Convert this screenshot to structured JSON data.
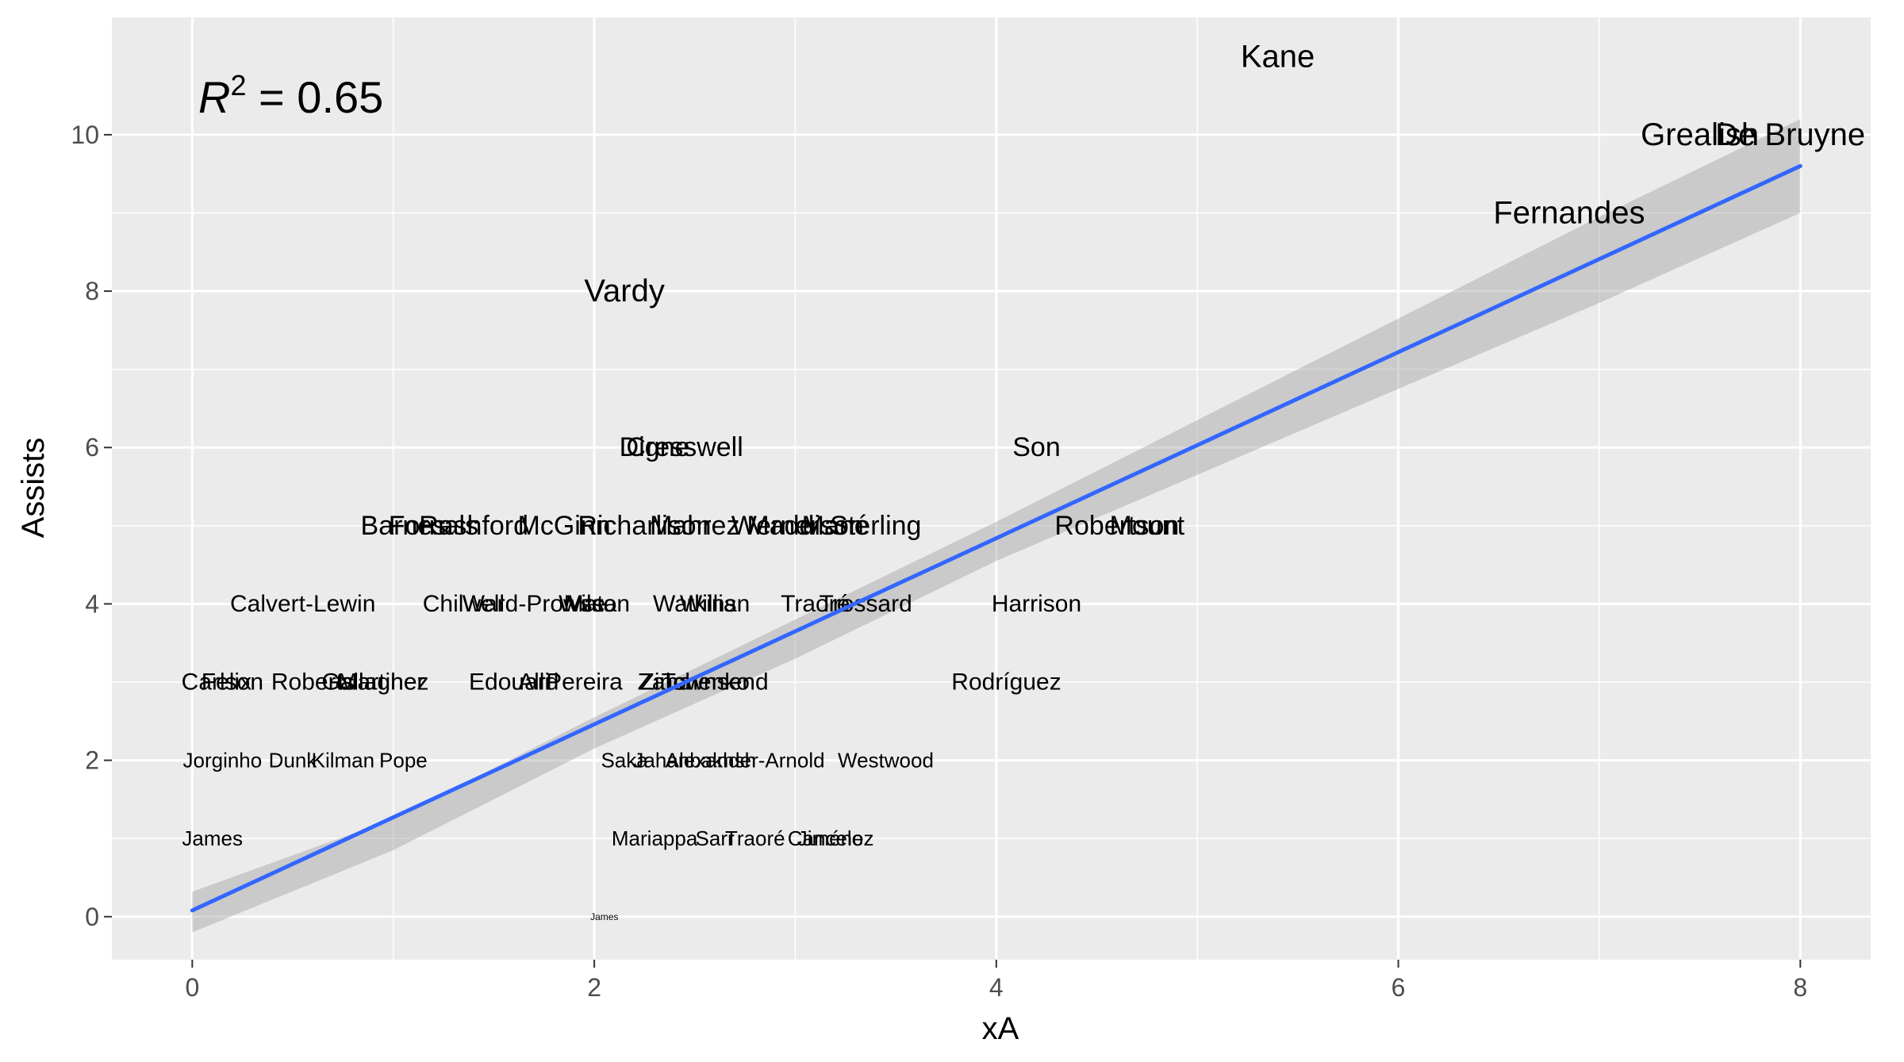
{
  "chart_data": {
    "type": "scatter",
    "title": "",
    "xlabel": "xA",
    "ylabel": "Assists",
    "xlim": [
      -0.4,
      8.35
    ],
    "ylim": [
      -0.55,
      11.5
    ],
    "x_ticks": [
      0,
      2,
      4,
      6,
      8
    ],
    "y_ticks": [
      0,
      2,
      4,
      6,
      8,
      10
    ],
    "grid": true,
    "annotation": {
      "r": "R",
      "sup": "2",
      "rest": " = 0.65",
      "x": 0.05,
      "y": 10.5
    },
    "fit": {
      "method": "lm",
      "points": [
        [
          0,
          0.08
        ],
        [
          8,
          9.6
        ]
      ],
      "band": [
        [
          0,
          -0.2,
          0.32
        ],
        [
          1,
          0.85,
          1.25
        ],
        [
          2,
          2.15,
          2.55
        ],
        [
          3,
          3.3,
          3.8
        ],
        [
          4,
          4.55,
          5.05
        ],
        [
          5,
          5.65,
          6.35
        ],
        [
          6,
          6.75,
          7.65
        ],
        [
          7,
          7.85,
          8.95
        ],
        [
          8,
          9.0,
          10.2
        ]
      ]
    },
    "points": [
      {
        "label": "Kane",
        "x": 5.4,
        "y": 11
      },
      {
        "label": "Grealish",
        "x": 7.5,
        "y": 10
      },
      {
        "label": "De Bruyne",
        "x": 7.95,
        "y": 10
      },
      {
        "label": "Fernandes",
        "x": 6.85,
        "y": 9
      },
      {
        "label": "Vardy",
        "x": 2.15,
        "y": 8
      },
      {
        "label": "Digne",
        "x": 2.3,
        "y": 6
      },
      {
        "label": "Cresswell",
        "x": 2.45,
        "y": 6
      },
      {
        "label": "Son",
        "x": 4.2,
        "y": 6
      },
      {
        "label": "Barnes",
        "x": 1.05,
        "y": 5
      },
      {
        "label": "Fornals",
        "x": 1.2,
        "y": 5
      },
      {
        "label": "Rashford",
        "x": 1.4,
        "y": 5
      },
      {
        "label": "McGinn",
        "x": 1.85,
        "y": 5
      },
      {
        "label": "Richarlison",
        "x": 2.25,
        "y": 5
      },
      {
        "label": "Mahrez",
        "x": 2.5,
        "y": 5
      },
      {
        "label": "Werner",
        "x": 2.9,
        "y": 5
      },
      {
        "label": "Maddison",
        "x": 3.05,
        "y": 5
      },
      {
        "label": "Mané",
        "x": 3.2,
        "y": 5
      },
      {
        "label": "Sterling",
        "x": 3.4,
        "y": 5
      },
      {
        "label": "Robertson",
        "x": 4.6,
        "y": 5
      },
      {
        "label": "Mount",
        "x": 4.75,
        "y": 5
      },
      {
        "label": "Calvert-Lewin",
        "x": 0.55,
        "y": 4
      },
      {
        "label": "Chilwell",
        "x": 1.35,
        "y": 4
      },
      {
        "label": "Ward-Prowse",
        "x": 1.7,
        "y": 4
      },
      {
        "label": "Wilson",
        "x": 2.0,
        "y": 4
      },
      {
        "label": "Mata",
        "x": 1.98,
        "y": 4
      },
      {
        "label": "Willian",
        "x": 2.6,
        "y": 4
      },
      {
        "label": "Watkins",
        "x": 2.5,
        "y": 4
      },
      {
        "label": "Traoré",
        "x": 3.1,
        "y": 4
      },
      {
        "label": "Trossard",
        "x": 3.35,
        "y": 4
      },
      {
        "label": "Harrison",
        "x": 4.2,
        "y": 4
      },
      {
        "label": "Carlson",
        "x": 0.15,
        "y": 3
      },
      {
        "label": "Felix",
        "x": 0.17,
        "y": 3
      },
      {
        "label": "Roberts",
        "x": 0.6,
        "y": 3
      },
      {
        "label": "Gallagher",
        "x": 0.9,
        "y": 3
      },
      {
        "label": "Martinez",
        "x": 0.95,
        "y": 3
      },
      {
        "label": "Edouard",
        "x": 1.6,
        "y": 3
      },
      {
        "label": "Alli",
        "x": 1.7,
        "y": 3
      },
      {
        "label": "Pereira",
        "x": 1.95,
        "y": 3
      },
      {
        "label": "Zaha",
        "x": 2.35,
        "y": 3
      },
      {
        "label": "Zinchenko",
        "x": 2.5,
        "y": 3
      },
      {
        "label": "Townsend",
        "x": 2.6,
        "y": 3
      },
      {
        "label": "Rodríguez",
        "x": 4.05,
        "y": 3
      },
      {
        "label": "Jorginho",
        "x": 0.15,
        "y": 2
      },
      {
        "label": "Dunk",
        "x": 0.5,
        "y": 2
      },
      {
        "label": "Kilman",
        "x": 0.75,
        "y": 2
      },
      {
        "label": "Pope",
        "x": 1.05,
        "y": 2
      },
      {
        "label": "Saka",
        "x": 2.15,
        "y": 2
      },
      {
        "label": "Jahanbakhsh",
        "x": 2.5,
        "y": 2
      },
      {
        "label": "Alexander-Arnold",
        "x": 2.75,
        "y": 2
      },
      {
        "label": "Westwood",
        "x": 3.45,
        "y": 2
      },
      {
        "label": "James",
        "x": 0.1,
        "y": 1
      },
      {
        "label": "Mariappa",
        "x": 2.3,
        "y": 1
      },
      {
        "label": "Sarr",
        "x": 2.6,
        "y": 1
      },
      {
        "label": "Traoré",
        "x": 2.8,
        "y": 1
      },
      {
        "label": "Cancelo",
        "x": 3.15,
        "y": 1
      },
      {
        "label": "Jiménez",
        "x": 3.2,
        "y": 1
      },
      {
        "label": "James",
        "x": 2.05,
        "y": 0
      }
    ]
  }
}
